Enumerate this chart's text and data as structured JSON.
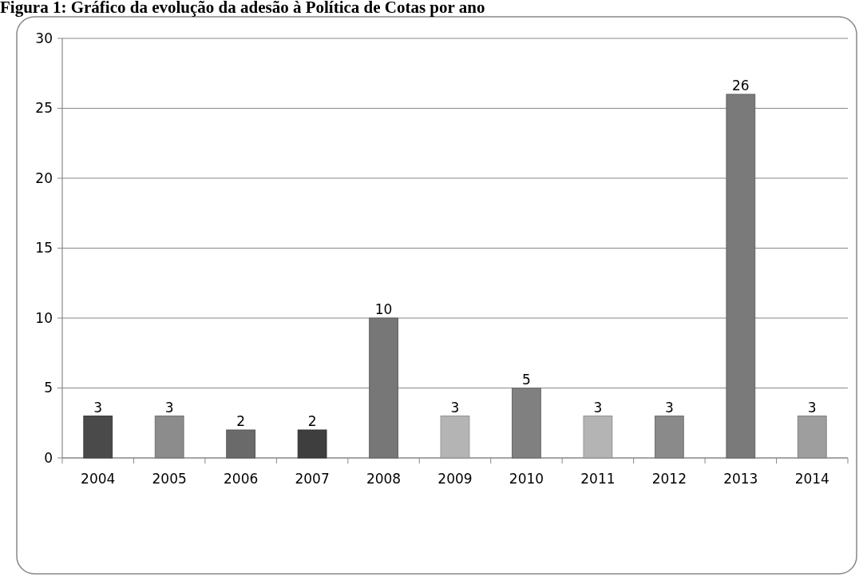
{
  "chart_data": {
    "type": "bar",
    "title": "Figura 1: Gráfico da evolução da adesão à Política de Cotas por ano",
    "categories": [
      "2004",
      "2005",
      "2006",
      "2007",
      "2008",
      "2009",
      "2010",
      "2011",
      "2012",
      "2013",
      "2014"
    ],
    "values": [
      3,
      3,
      2,
      2,
      10,
      3,
      5,
      3,
      3,
      26,
      3
    ],
    "colors": [
      "#4a4a4a",
      "#8c8c8c",
      "#6a6a6a",
      "#3e3e3e",
      "#777777",
      "#b4b4b4",
      "#808080",
      "#b4b4b4",
      "#8a8a8a",
      "#7a7a7a",
      "#9e9e9e"
    ],
    "ylim": [
      0,
      30
    ],
    "yticks": [
      0,
      5,
      10,
      15,
      20,
      25,
      30
    ],
    "grid": "y",
    "data_labels": true
  }
}
